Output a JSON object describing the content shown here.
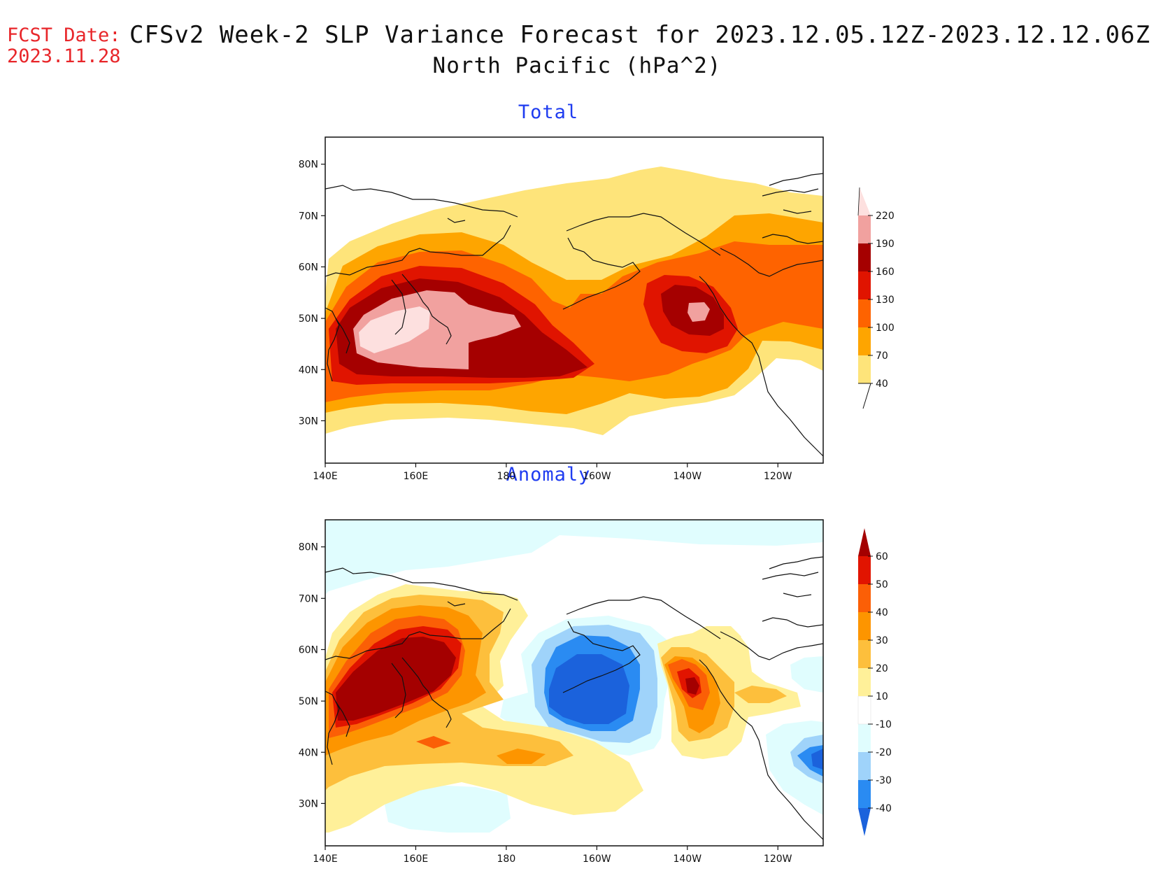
{
  "header": {
    "fcst_label": "FCST Date:",
    "fcst_date": "2023.11.28",
    "title": "CFSv2 Week-2 SLP Variance Forecast for 2023.12.05.12Z-2023.12.12.06Z",
    "subtitle": "North Pacific (hPa^2)"
  },
  "axes": {
    "lat_ticks": [
      "30N",
      "40N",
      "50N",
      "60N",
      "70N",
      "80N"
    ],
    "lon_ticks": [
      "140E",
      "160E",
      "180",
      "160W",
      "140W",
      "120W"
    ]
  },
  "panels": {
    "total": {
      "title": "Total",
      "colorbar": {
        "levels": [
          "40",
          "70",
          "100",
          "130",
          "160",
          "190",
          "220"
        ],
        "colors": [
          "#fee47a",
          "#fea500",
          "#fe6300",
          "#e01400",
          "#a50000",
          "#f1a19f",
          "#fde0df"
        ]
      }
    },
    "anomaly": {
      "title": "Anomaly",
      "colorbar": {
        "levels": [
          "-40",
          "-30",
          "-20",
          "-10",
          "10",
          "20",
          "30",
          "40",
          "50",
          "60"
        ],
        "colors": [
          "#1b62dc",
          "#2a8bf2",
          "#9fd3fa",
          "#e0fdfe",
          "#ffffff",
          "#fff099",
          "#fdbf3c",
          "#fd9500",
          "#fb5f06",
          "#e11400",
          "#a40000"
        ]
      }
    }
  }
}
